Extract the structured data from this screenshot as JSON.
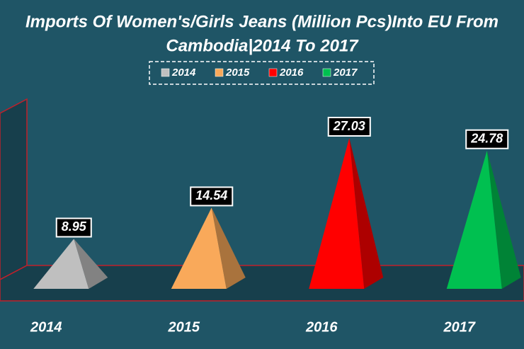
{
  "chart_data": {
    "type": "pyramid",
    "title": "Imports Of Women's/Girls Jeans (Million Pcs)Into EU From",
    "subtitle": "Cambodia|2014 To 2017",
    "categories": [
      "2014",
      "2015",
      "2016",
      "2017"
    ],
    "values": [
      8.95,
      14.54,
      27.03,
      24.78
    ],
    "colors": [
      "#bfbfbf",
      "#f9a95a",
      "#ff0000",
      "#00c050"
    ],
    "legend": "top"
  }
}
